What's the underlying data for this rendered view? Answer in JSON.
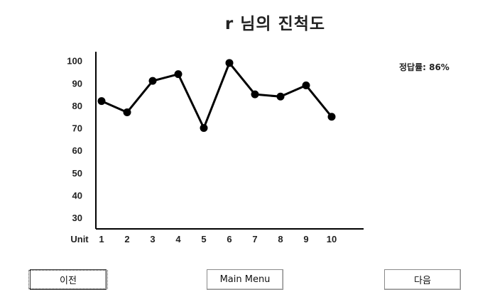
{
  "window": {
    "title": "r 님의 진척도",
    "accuracy": "정답률: 86%"
  },
  "chart_data": {
    "type": "line",
    "xlabel": "Unit",
    "categories": [
      "1",
      "2",
      "3",
      "4",
      "5",
      "6",
      "7",
      "8",
      "9",
      "10"
    ],
    "values": [
      82,
      77,
      91,
      94,
      70,
      99,
      85,
      84,
      89,
      75
    ],
    "yticks": [
      100,
      90,
      80,
      70,
      60,
      50,
      40,
      30
    ],
    "ylim": [
      25,
      104
    ],
    "grid": false,
    "line_color": "#000000"
  },
  "buttons": {
    "prev": "이전",
    "main_menu": "Main Menu",
    "next": "다음"
  }
}
